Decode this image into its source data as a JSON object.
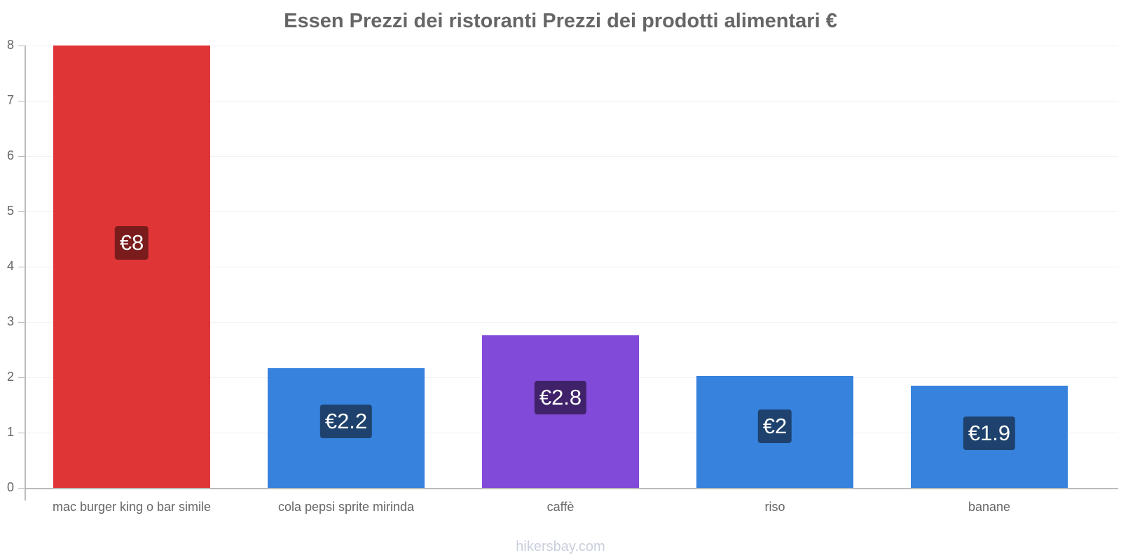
{
  "chart_data": {
    "type": "bar",
    "title": "Essen Prezzi dei ristoranti Prezzi dei prodotti alimentari €",
    "categories": [
      "mac burger king o bar simile",
      "cola pepsi sprite mirinda",
      "caffè",
      "riso",
      "banane"
    ],
    "values": [
      8,
      2.16,
      2.76,
      2.03,
      1.85
    ],
    "labels": [
      "€8",
      "€2.2",
      "€2.8",
      "€2",
      "€1.9"
    ],
    "colors": [
      "#e03536",
      "#3682dd",
      "#814ad8",
      "#3682dd",
      "#3682dd"
    ],
    "label_bg": [
      "#7a1c1c",
      "#1e426d",
      "#40226a",
      "#1e426d",
      "#1e426d"
    ],
    "xlabel": "",
    "ylabel": "",
    "ylim": [
      0,
      8
    ],
    "yticks": [
      "0",
      "1",
      "2",
      "3",
      "4",
      "5",
      "6",
      "7",
      "8"
    ],
    "grid": true,
    "legend": "none"
  },
  "footer": "hikersbay.com"
}
